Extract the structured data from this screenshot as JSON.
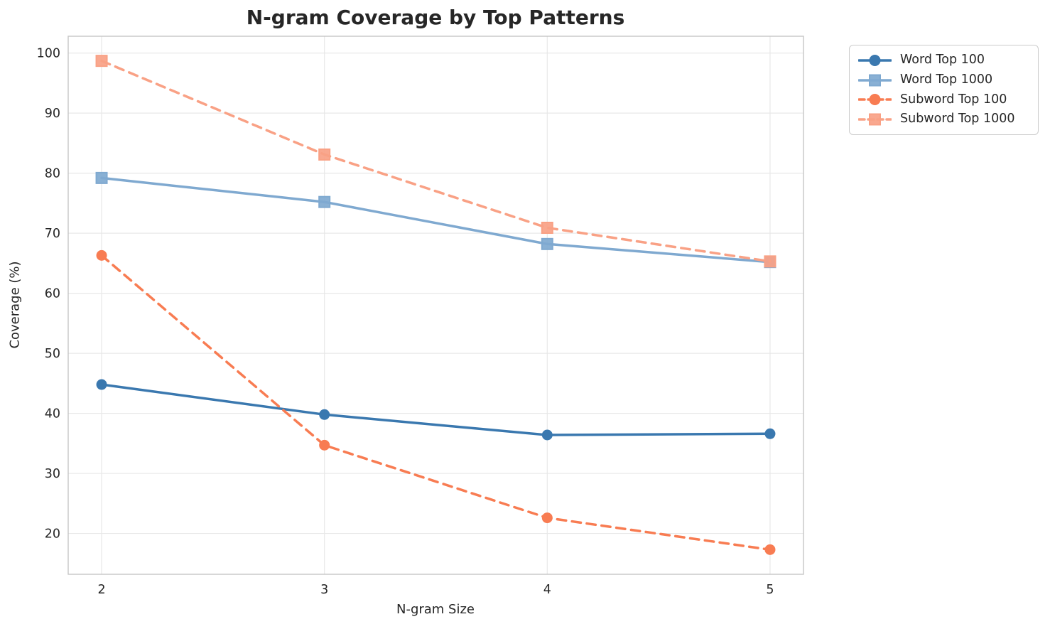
{
  "chart_data": {
    "type": "line",
    "title": "N-gram Coverage by Top Patterns",
    "xlabel": "N-gram Size",
    "ylabel": "Coverage (%)",
    "x": [
      2,
      3,
      4,
      5
    ],
    "xticks": [
      "2",
      "3",
      "4",
      "5"
    ],
    "yticks": [
      20,
      30,
      40,
      50,
      60,
      70,
      80,
      90,
      100
    ],
    "xlim": [
      1.85,
      5.15
    ],
    "ylim": [
      13.2,
      102.8
    ],
    "grid": true,
    "legend_position": "outside upper right",
    "series": [
      {
        "name": "Word Top 100",
        "values": [
          44.8,
          39.8,
          36.4,
          36.6
        ],
        "color": "#3a78af",
        "line_style": "solid",
        "marker": "circle"
      },
      {
        "name": "Word Top 1000",
        "values": [
          79.2,
          75.2,
          68.2,
          65.2
        ],
        "color": "#7fa9d0",
        "line_style": "solid",
        "marker": "square"
      },
      {
        "name": "Subword Top 100",
        "values": [
          66.3,
          34.7,
          22.6,
          17.3
        ],
        "color": "#f87c52",
        "line_style": "dashed",
        "marker": "circle"
      },
      {
        "name": "Subword Top 1000",
        "values": [
          98.7,
          83.1,
          70.9,
          65.3
        ],
        "color": "#f9a185",
        "line_style": "dashed",
        "marker": "square"
      }
    ],
    "colors": {
      "grid": "#e8e8e8",
      "spine": "#c6c6c6",
      "text": "#262626",
      "background": "#ffffff"
    }
  }
}
